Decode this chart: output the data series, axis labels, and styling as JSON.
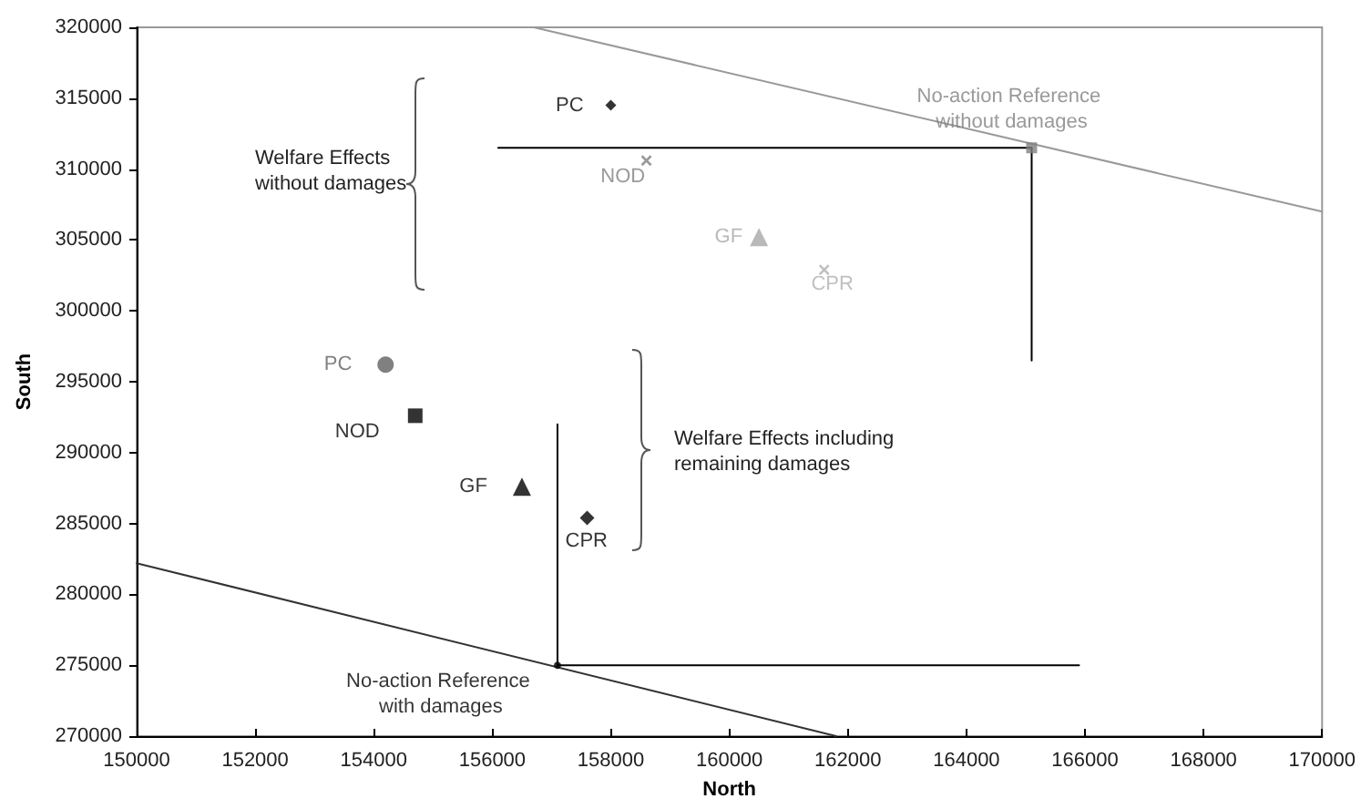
{
  "chart_data": {
    "type": "scatter",
    "xlabel": "North",
    "ylabel": "South",
    "xlim": [
      150000,
      170000
    ],
    "xticks": [
      150000,
      152000,
      154000,
      156000,
      158000,
      160000,
      162000,
      164000,
      166000,
      168000,
      170000
    ],
    "ylim": [
      270000,
      320000
    ],
    "yticks": [
      270000,
      275000,
      280000,
      285000,
      290000,
      295000,
      300000,
      305000,
      310000,
      315000,
      320000
    ],
    "grid": false,
    "legend": false,
    "annotations": [
      "Welfare Effects without damages",
      "Welfare Effects including remaining damages"
    ],
    "series": [
      {
        "name": "PC",
        "marker": "diamond",
        "color": "#000000",
        "x": [
          158000
        ],
        "values": [
          314500
        ]
      },
      {
        "name": "NOD",
        "marker": "cross",
        "color": "#808080",
        "x": [
          158600
        ],
        "values": [
          310600
        ]
      },
      {
        "name": "GF",
        "marker": "triangle",
        "color": "#a8a8a8",
        "x": [
          160500
        ],
        "values": [
          305200
        ]
      },
      {
        "name": "CPR",
        "marker": "cross",
        "color": "#b0b0b0",
        "x": [
          161600
        ],
        "values": [
          302900
        ]
      },
      {
        "name": "No-action Reference without damages",
        "marker": "square",
        "color": "#808080",
        "x": [
          165100
        ],
        "values": [
          311500
        ]
      },
      {
        "name": "PC",
        "marker": "circle",
        "color": "#606060",
        "x": [
          154200
        ],
        "values": [
          296200
        ]
      },
      {
        "name": "NOD",
        "marker": "square",
        "color": "#000000",
        "x": [
          154700
        ],
        "values": [
          292600
        ]
      },
      {
        "name": "GF",
        "marker": "triangle",
        "color": "#000000",
        "x": [
          156500
        ],
        "values": [
          287600
        ]
      },
      {
        "name": "CPR",
        "marker": "diamond",
        "color": "#000000",
        "x": [
          157600
        ],
        "values": [
          285400
        ]
      },
      {
        "name": "No-action Reference with damages",
        "marker": "circle",
        "color": "#000000",
        "x": [
          157100
        ],
        "values": [
          275000
        ]
      },
      {
        "type": "line",
        "marker": "none",
        "color": "#999999",
        "x": [
          156700,
          170000
        ],
        "values": [
          320000,
          307000
        ]
      },
      {
        "type": "line",
        "marker": "none",
        "color": "#333333",
        "x": [
          150000,
          161800
        ],
        "values": [
          282200,
          270000
        ]
      },
      {
        "type": "line",
        "marker": "none",
        "color": "#000000",
        "x": [
          156100,
          165100
        ],
        "values": [
          311500,
          311500
        ]
      },
      {
        "type": "line",
        "marker": "none",
        "color": "#000000",
        "x": [
          165100,
          165100
        ],
        "values": [
          311500,
          296500
        ]
      },
      {
        "type": "line",
        "marker": "none",
        "color": "#000000",
        "x": [
          157100,
          157100
        ],
        "values": [
          292000,
          275000
        ]
      },
      {
        "type": "line",
        "marker": "none",
        "color": "#000000",
        "x": [
          157100,
          165900
        ],
        "values": [
          275000,
          275000
        ]
      }
    ]
  }
}
